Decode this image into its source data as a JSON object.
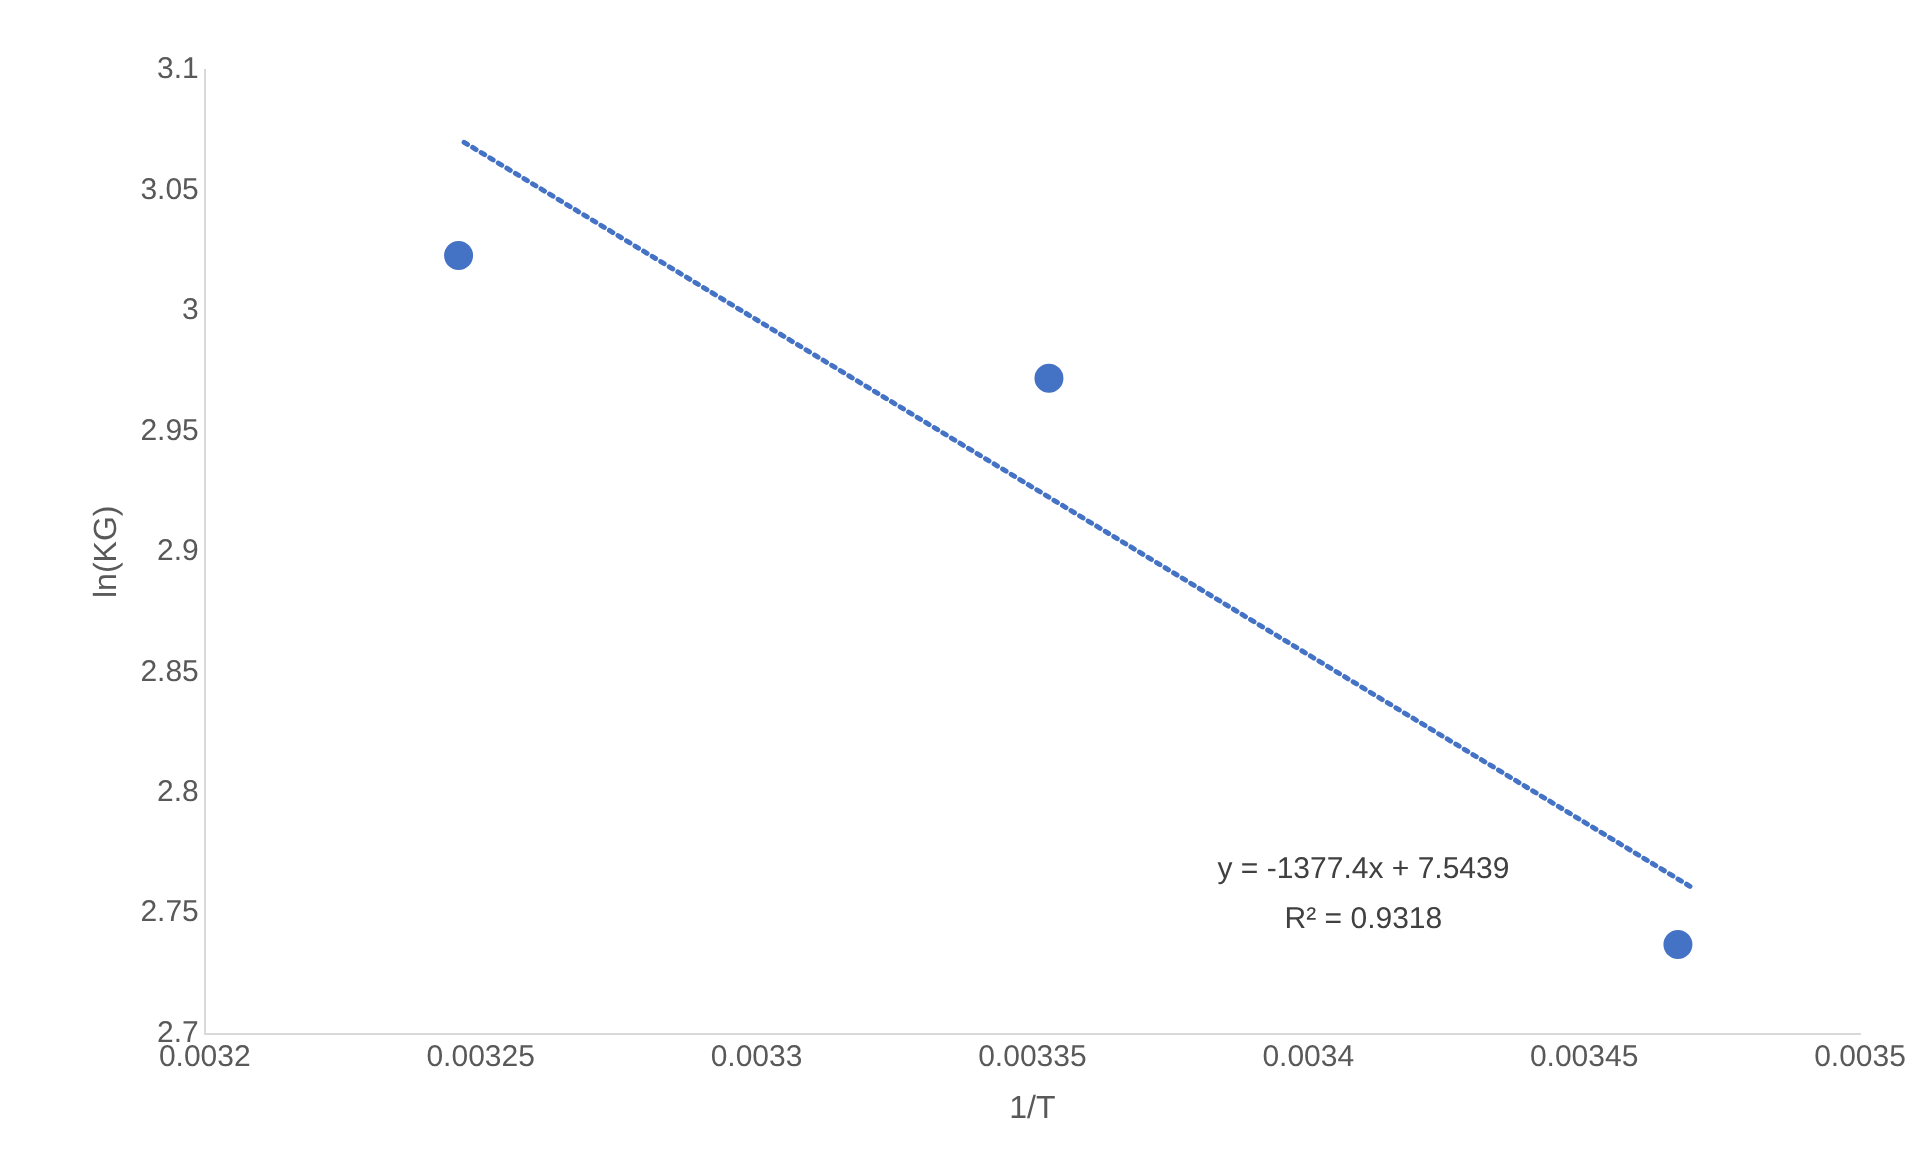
{
  "chart_data": {
    "type": "scatter",
    "xlabel": "1/T",
    "ylabel": "ln(KG)",
    "xlim": [
      0.0032,
      0.0035
    ],
    "xticks": [
      0.0032,
      0.00325,
      0.0033,
      0.00335,
      0.0034,
      0.00345,
      0.0035
    ],
    "ylim": [
      2.7,
      3.1
    ],
    "yticks": [
      2.7,
      2.75,
      2.8,
      2.85,
      2.9,
      2.95,
      3,
      3.05,
      3.1
    ],
    "grid": false,
    "legend": false,
    "series": [
      {
        "type": "scatter",
        "color": "#4472c4",
        "marker": "circle",
        "x": [
          0.003246,
          0.003353,
          0.003467
        ],
        "values": [
          3.023,
          2.972,
          2.737
        ]
      },
      {
        "type": "line",
        "color": "#4472c4",
        "marker": "none",
        "line_style": "dotted",
        "x": [
          0.003247,
          0.00347
        ],
        "values": [
          3.07,
          2.76
        ]
      }
    ],
    "annotations": [
      "y = -1377.4x + 7.5439",
      "R² = 0.9318"
    ]
  }
}
